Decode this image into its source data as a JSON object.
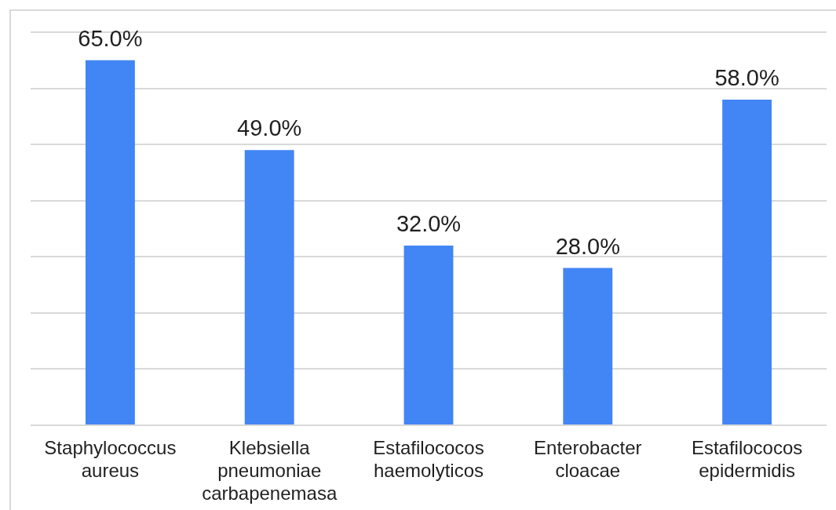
{
  "chart_data": {
    "type": "bar",
    "categories": [
      "Staphylococcus aureus",
      "Klebsiella pneumoniae carbapenemasa",
      "Estafilococos haemolyticos",
      "Enterobacter cloacae",
      "Estafilococos epidermidis"
    ],
    "values": [
      65,
      49,
      32,
      28,
      58
    ],
    "color": "#4285f4",
    "value_labels": [
      "65.0%",
      "49.0%",
      "32.0%",
      "28.0%",
      "58.0%"
    ],
    "ylim": [
      0,
      70
    ],
    "yticks": [
      {
        "value": 0,
        "label": null
      },
      {
        "value": 10,
        "label": null
      },
      {
        "value": 20,
        "label": null
      },
      {
        "value": 30,
        "label": null
      },
      {
        "value": 40,
        "label": null
      },
      {
        "value": 50,
        "label": null
      },
      {
        "value": 60,
        "label": null
      },
      {
        "value": 70,
        "label": null
      }
    ],
    "grid": "y",
    "tick_labels": "x"
  }
}
